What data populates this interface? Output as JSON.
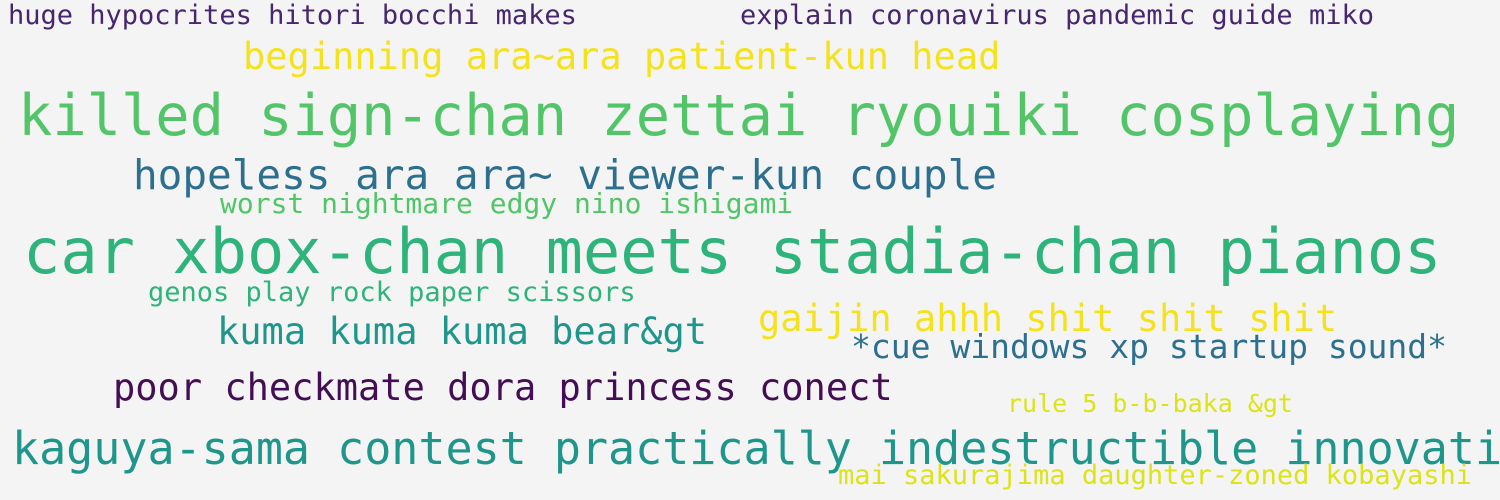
{
  "words": [
    {
      "text": "huge hypocrites hitori bocchi makes",
      "color": "#47266f"
    },
    {
      "text": "explain coronavirus pandemic guide miko",
      "color": "#47266f"
    },
    {
      "text": "beginning ara~ara patient-kun head",
      "color": "#f5e21f"
    },
    {
      "text": "killed sign-chan zettai ryouiki cosplaying",
      "color": "#52c569"
    },
    {
      "text": "hopeless ara ara~ viewer-kun couple",
      "color": "#2d6f8e"
    },
    {
      "text": "worst nightmare edgy nino ishigami",
      "color": "#52c569"
    },
    {
      "text": "car xbox-chan meets stadia-chan pianos",
      "color": "#2eb37b"
    },
    {
      "text": "genos play rock paper scissors",
      "color": "#2eb37b"
    },
    {
      "text": "gaijin ahhh shit shit shit",
      "color": "#f5e21f"
    },
    {
      "text": "kuma kuma kuma bear&gt",
      "color": "#1f968b"
    },
    {
      "text": "*cue windows xp startup sound*",
      "color": "#2d6f8e"
    },
    {
      "text": "poor checkmate dora princess conect",
      "color": "#440d54"
    },
    {
      "text": "rule 5 b-b-baka &gt",
      "color": "#dce318"
    },
    {
      "text": "kaguya-sama contest practically indestructible innovation",
      "color": "#1f968b"
    },
    {
      "text": "mai sakurajima daughter-zoned kobayashi",
      "color": "#dce318"
    }
  ]
}
